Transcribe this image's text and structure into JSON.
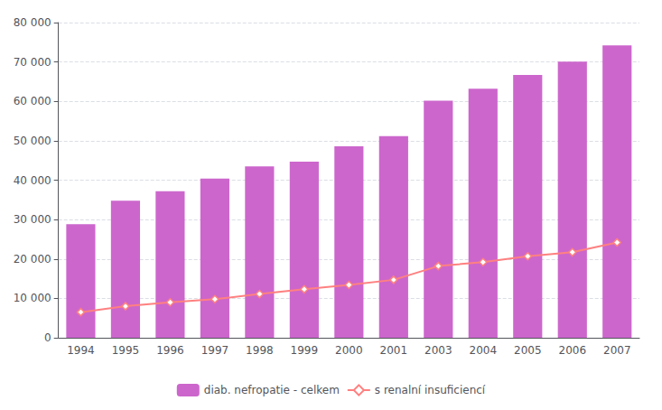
{
  "chart_data": {
    "type": "bar",
    "categories": [
      "1994",
      "1995",
      "1996",
      "1997",
      "1998",
      "1999",
      "2000",
      "2001",
      "2003",
      "2004",
      "2005",
      "2006",
      "2007"
    ],
    "series": [
      {
        "name": "diab. nefropatie - celkem",
        "type": "bar",
        "color": "#cc66cc",
        "values": [
          28800,
          34800,
          37200,
          40400,
          43500,
          44700,
          48600,
          51200,
          60200,
          63200,
          66700,
          70100,
          74200
        ]
      },
      {
        "name": "s renalní insuficiencí",
        "type": "line",
        "color": "#ff8080",
        "marker": "diamond",
        "values": [
          6500,
          8000,
          9000,
          9800,
          11100,
          12300,
          13400,
          14700,
          18200,
          19200,
          20700,
          21700,
          24200
        ]
      }
    ],
    "ylim": [
      0,
      80000
    ],
    "yticks": [
      0,
      {
        "value": 10000,
        "label": "10 000"
      },
      {
        "value": 20000,
        "label": "20 000"
      },
      {
        "value": 30000,
        "label": "30 000"
      },
      {
        "value": 40000,
        "label": "40 000"
      },
      {
        "value": 50000,
        "label": "50 000"
      },
      {
        "value": 60000,
        "label": "60 000"
      },
      {
        "value": 70000,
        "label": "70 000"
      },
      {
        "value": 80000,
        "label": "80 000"
      }
    ],
    "grid": true,
    "legend": "bottom"
  }
}
